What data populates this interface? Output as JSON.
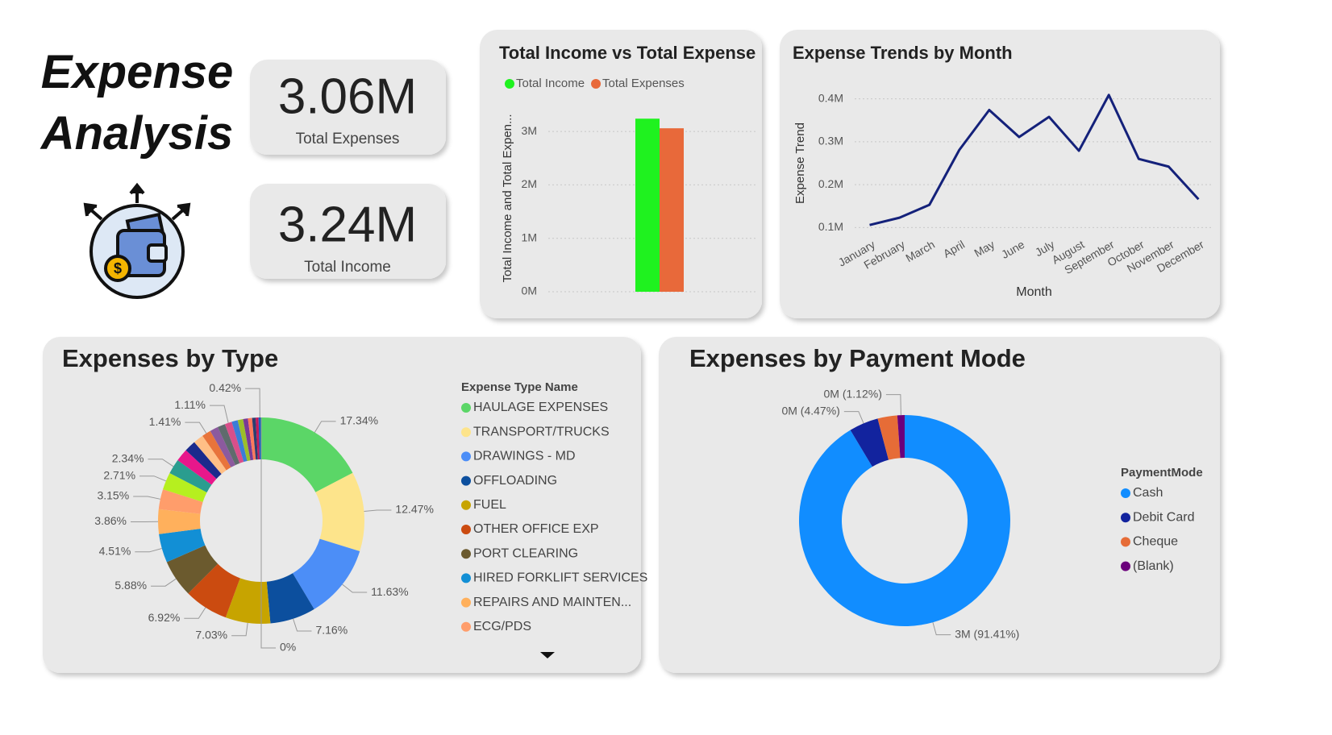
{
  "title": "Expense Analysis",
  "kpis": [
    {
      "value": "3.06M",
      "label": "Total Expenses"
    },
    {
      "value": "3.24M",
      "label": "Total Income"
    }
  ],
  "chart_data": [
    {
      "type": "bar",
      "title": "Total Income vs Total Expense",
      "ylabel": "Total Income and Total Expen...",
      "categories": [
        null
      ],
      "series": [
        {
          "name": "Total Income",
          "color": "#1ff21f",
          "values": [
            3240000
          ]
        },
        {
          "name": "Total Expenses",
          "color": "#e8693a",
          "values": [
            3060000
          ]
        }
      ],
      "ylim": [
        0,
        3500000
      ],
      "yticks": [
        {
          "value": 0,
          "label": "0M"
        },
        {
          "value": 1000000,
          "label": "1M"
        },
        {
          "value": 2000000,
          "label": "2M"
        },
        {
          "value": 3000000,
          "label": "3M"
        }
      ],
      "grid": true,
      "legend": "top-left"
    },
    {
      "type": "line",
      "title": "Expense Trends by Month",
      "xlabel": "Month",
      "ylabel": "Expense Trend",
      "categories": [
        "January",
        "February",
        "March",
        "April",
        "May",
        "June",
        "July",
        "August",
        "September",
        "October",
        "November",
        "December"
      ],
      "values": [
        106000,
        123000,
        153000,
        281000,
        374000,
        311000,
        358000,
        279000,
        409000,
        260000,
        242000,
        166000
      ],
      "color": "#14217a",
      "ylim": [
        80000,
        420000
      ],
      "yticks": [
        {
          "value": 100000,
          "label": "0.1M"
        },
        {
          "value": 200000,
          "label": "0.2M"
        },
        {
          "value": 300000,
          "label": "0.3M"
        },
        {
          "value": 400000,
          "label": "0.4M"
        }
      ],
      "grid": true
    },
    {
      "type": "pie",
      "title": "Expenses by Type",
      "legend_title": "Expense Type Name",
      "donut": true,
      "categories": [
        "HAULAGE EXPENSES",
        "TRANSPORT/TRUCKS",
        "DRAWINGS - MD",
        "OFFLOADING",
        "FUEL",
        "OTHER OFFICE EXP",
        "PORT CLEARING",
        "HIRED FORKLIFT SERVICES",
        "REPAIRS AND MAINTEN...",
        "ECG/PDS",
        null,
        null,
        null,
        null,
        null,
        null,
        null,
        null,
        null,
        null,
        null,
        null,
        null,
        null,
        null,
        null,
        null
      ],
      "values": [
        17.34,
        12.47,
        11.63,
        7.16,
        7.03,
        6.92,
        5.88,
        4.51,
        3.86,
        3.15,
        2.71,
        2.34,
        2.0,
        1.8,
        1.6,
        1.41,
        1.3,
        1.2,
        1.11,
        0.95,
        0.85,
        0.75,
        0.65,
        0.55,
        0.45,
        0.42,
        0
      ],
      "value_labels": [
        "17.34%",
        "12.47%",
        "11.63%",
        "7.16%",
        "7.03%",
        "6.92%",
        "5.88%",
        "4.51%",
        "3.86%",
        "3.15%",
        "2.71%",
        "2.34%",
        null,
        null,
        null,
        "1.41%",
        null,
        null,
        "1.11%",
        null,
        null,
        null,
        null,
        null,
        null,
        "0.42%",
        "0%"
      ],
      "colors": [
        "#5bd667",
        "#fde48b",
        "#4c8ef7",
        "#0c4f9e",
        "#c7a400",
        "#cb4b10",
        "#6b5a2e",
        "#128fd5",
        "#ffb05c",
        "#ff9d6b",
        "#b6ef1f",
        "#2a9d8f",
        "#e8178b",
        "#1b2a8c",
        "#ffbf86",
        "#e8743b",
        "#8c5a9e",
        "#5f6b6d",
        "#d94f8a",
        "#3b7dd8",
        "#9bbf2a",
        "#7a3b96",
        "#ff7a5c",
        "#2c3e70",
        "#c2185b",
        "#1565c0",
        "#455a64"
      ]
    },
    {
      "type": "pie",
      "title": "Expenses by Payment Mode",
      "legend_title": "PaymentMode",
      "donut": true,
      "categories": [
        "Cash",
        "Debit Card",
        "Cheque",
        "(Blank)"
      ],
      "values": [
        2797000,
        137000,
        92000,
        34000
      ],
      "value_labels": [
        "3M (91.41%)",
        "0M (4.47%)",
        null,
        "0M (1.12%)"
      ],
      "colors": [
        "#118dff",
        "#12239e",
        "#e66c37",
        "#6b007b"
      ]
    }
  ]
}
